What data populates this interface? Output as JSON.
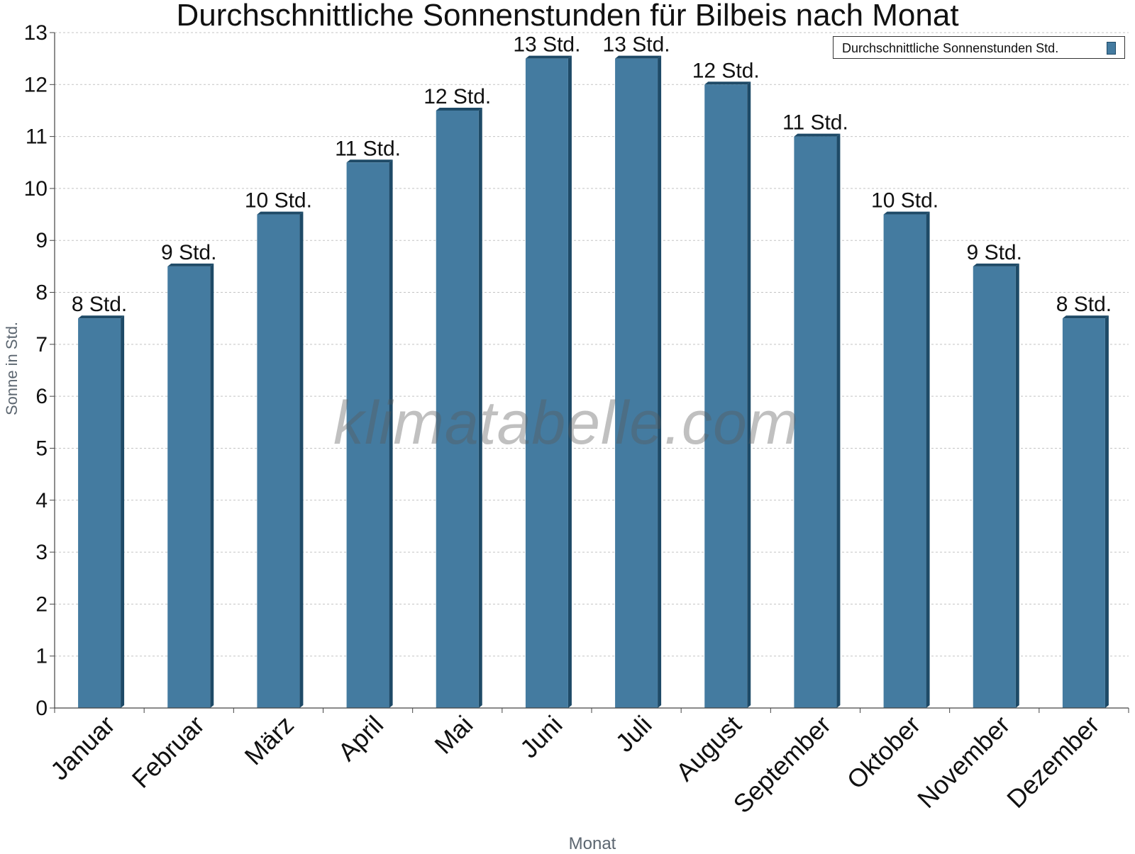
{
  "chart_data": {
    "type": "bar",
    "title": "Durchschnittliche Sonnenstunden für Bilbeis nach Monat",
    "xlabel": "Monat",
    "ylabel": "Sonne in Std.",
    "categories": [
      "Januar",
      "Februar",
      "März",
      "April",
      "Mai",
      "Juni",
      "Juli",
      "August",
      "September",
      "Oktober",
      "November",
      "Dezember"
    ],
    "series": [
      {
        "name": "Durchschnittliche Sonnenstunden Std.",
        "values": [
          7.5,
          8.5,
          9.5,
          10.5,
          11.5,
          12.5,
          12.5,
          12.0,
          11.0,
          9.5,
          8.5,
          7.5
        ],
        "labels": [
          "8 Std.",
          "9 Std.",
          "10 Std.",
          "11 Std.",
          "12 Std.",
          "13 Std.",
          "13 Std.",
          "12 Std.",
          "11 Std.",
          "10 Std.",
          "9 Std.",
          "8 Std."
        ]
      }
    ],
    "ylim": [
      0,
      13
    ],
    "yticks": [
      0,
      1,
      2,
      3,
      4,
      5,
      6,
      7,
      8,
      9,
      10,
      11,
      12,
      13
    ],
    "grid": true,
    "legend_position": "top-right",
    "colors": {
      "bar": "#447ba0",
      "bar_side": "#1e4a67"
    }
  },
  "watermark": "klimatabelle.com"
}
